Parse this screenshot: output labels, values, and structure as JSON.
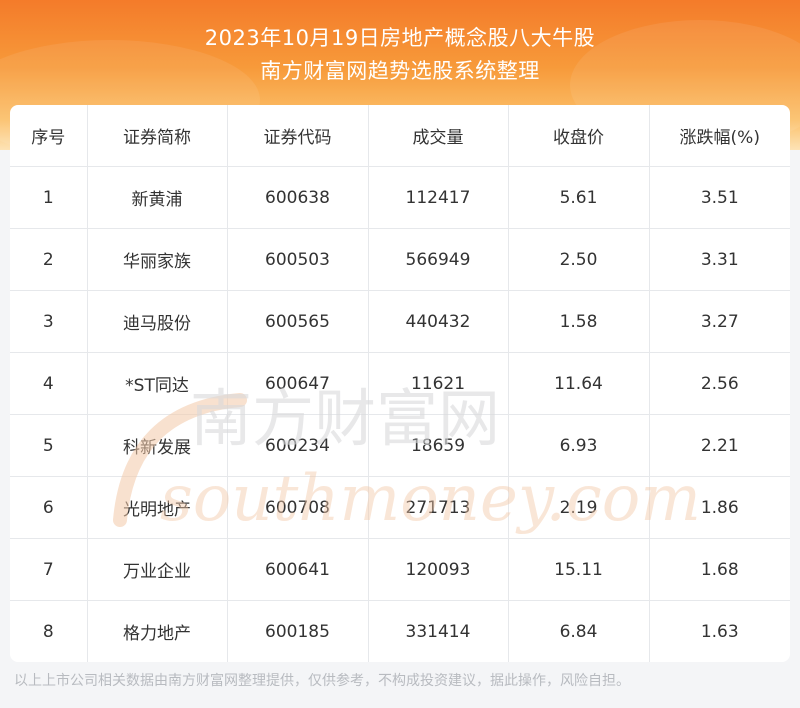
{
  "header": {
    "title": "2023年10月19日房地产概念股八大牛股",
    "subtitle": "南方财富网趋势选股系统整理"
  },
  "table": {
    "columns": [
      "序号",
      "证券简称",
      "证券代码",
      "成交量",
      "收盘价",
      "涨跌幅(%)"
    ],
    "rows": [
      [
        "1",
        "新黄浦",
        "600638",
        "112417",
        "5.61",
        "3.51"
      ],
      [
        "2",
        "华丽家族",
        "600503",
        "566949",
        "2.50",
        "3.31"
      ],
      [
        "3",
        "迪马股份",
        "600565",
        "440432",
        "1.58",
        "3.27"
      ],
      [
        "4",
        "*ST同达",
        "600647",
        "11621",
        "11.64",
        "2.56"
      ],
      [
        "5",
        "科新发展",
        "600234",
        "18659",
        "6.93",
        "2.21"
      ],
      [
        "6",
        "光明地产",
        "600708",
        "271713",
        "2.19",
        "1.86"
      ],
      [
        "7",
        "万业企业",
        "600641",
        "120093",
        "15.11",
        "1.68"
      ],
      [
        "8",
        "格力地产",
        "600185",
        "331414",
        "6.84",
        "1.63"
      ]
    ]
  },
  "watermark": {
    "cn": "南方财富网",
    "en": "southmoney.com"
  },
  "footer": {
    "disclaimer": "以上上市公司相关数据由南方财富网整理提供，仅供参考，不构成投资建议，据此操作，风险自担。"
  },
  "colors": {
    "header_orange": "#f47b2a",
    "watermark": "#f3c8a8"
  }
}
